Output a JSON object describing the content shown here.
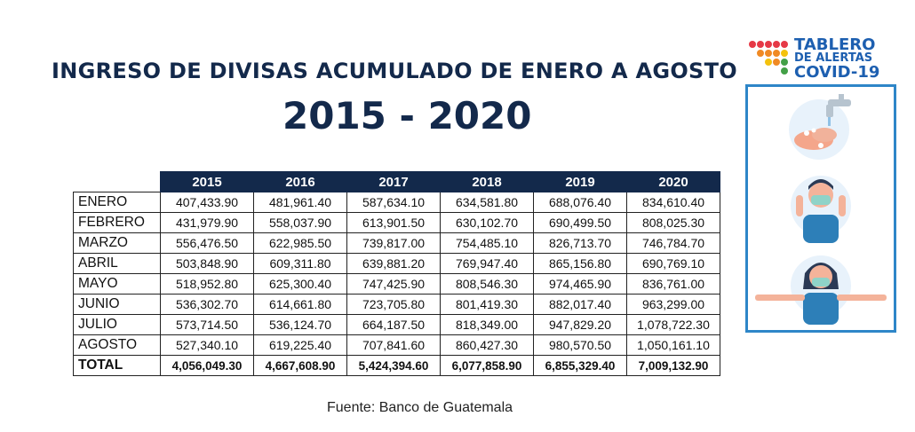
{
  "title": "INGRESO DE DIVISAS ACUMULADO DE ENERO A AGOSTO",
  "subtitle": "2015 - 2020",
  "source": "Fuente: Banco de Guatemala",
  "logo": {
    "line1": "TABLERO",
    "line2": "DE ALERTAS",
    "line3": "COVID-19"
  },
  "colors": {
    "header_bg": "#13294b",
    "title": "#13294b",
    "logo_text": "#1d5fb0",
    "panel_border": "#2e86c8"
  },
  "illustrations": [
    "hand-washing-icon",
    "face-mask-man-icon",
    "face-mask-distancing-woman-icon"
  ],
  "chart_data": {
    "type": "table",
    "title": "INGRESO DE DIVISAS ACUMULADO DE ENERO A AGOSTO",
    "subtitle": "2015 - 2020",
    "columns": [
      "2015",
      "2016",
      "2017",
      "2018",
      "2019",
      "2020"
    ],
    "rows": [
      {
        "label": "ENERO",
        "values": [
          "407,433.90",
          "481,961.40",
          "587,634.10",
          "634,581.80",
          "688,076.40",
          "834,610.40"
        ]
      },
      {
        "label": "FEBRERO",
        "values": [
          "431,979.90",
          "558,037.90",
          "613,901.50",
          "630,102.70",
          "690,499.50",
          "808,025.30"
        ]
      },
      {
        "label": "MARZO",
        "values": [
          "556,476.50",
          "622,985.50",
          "739,817.00",
          "754,485.10",
          "826,713.70",
          "746,784.70"
        ]
      },
      {
        "label": "ABRIL",
        "values": [
          "503,848.90",
          "609,311.80",
          "639,881.20",
          "769,947.40",
          "865,156.80",
          "690,769.10"
        ]
      },
      {
        "label": "MAYO",
        "values": [
          "518,952.80",
          "625,300.40",
          "747,425.90",
          "808,546.30",
          "974,465.90",
          "836,761.00"
        ]
      },
      {
        "label": "JUNIO",
        "values": [
          "536,302.70",
          "614,661.80",
          "723,705.80",
          "801,419.30",
          "882,017.40",
          "963,299.00"
        ]
      },
      {
        "label": "JULIO",
        "values": [
          "573,714.50",
          "536,124.70",
          "664,187.50",
          "818,349.00",
          "947,829.20",
          "1,078,722.30"
        ]
      },
      {
        "label": "AGOSTO",
        "values": [
          "527,340.10",
          "619,225.40",
          "707,841.60",
          "860,427.30",
          "980,570.50",
          "1,050,161.10"
        ]
      }
    ],
    "total": {
      "label": "TOTAL",
      "values": [
        "4,056,049.30",
        "4,667,608.90",
        "5,424,394.60",
        "6,077,858.90",
        "6,855,329.40",
        "7,009,132.90"
      ]
    }
  }
}
